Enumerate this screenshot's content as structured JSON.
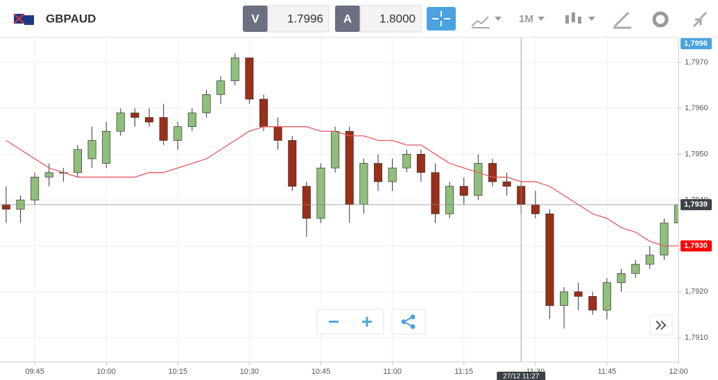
{
  "header": {
    "symbol": "GBPAUD",
    "bid_label": "V",
    "bid": "1.7996",
    "ask_label": "A",
    "ask": "1.8000",
    "timeframe": "1M"
  },
  "chart_data": {
    "type": "candlestick",
    "x": [
      "09:39",
      "09:42",
      "09:45",
      "09:48",
      "09:51",
      "09:54",
      "09:57",
      "10:00",
      "10:03",
      "10:06",
      "10:09",
      "10:12",
      "10:15",
      "10:18",
      "10:21",
      "10:24",
      "10:27",
      "10:30",
      "10:33",
      "10:36",
      "10:39",
      "10:42",
      "10:45",
      "10:48",
      "10:51",
      "10:54",
      "10:57",
      "11:00",
      "11:03",
      "11:06",
      "11:09",
      "11:12",
      "11:15",
      "11:18",
      "11:21",
      "11:24",
      "11:27",
      "11:30",
      "11:33",
      "11:36",
      "11:39",
      "11:42",
      "11:45",
      "11:48",
      "11:51",
      "11:54",
      "11:57",
      "12:00"
    ],
    "open": [
      1.7939,
      1.7938,
      1.794,
      1.7945,
      1.7946,
      1.7946,
      1.7949,
      1.7948,
      1.7955,
      1.7959,
      1.7958,
      1.7958,
      1.7953,
      1.7956,
      1.7959,
      1.7963,
      1.7966,
      1.7971,
      1.7962,
      1.7956,
      1.7953,
      1.7943,
      1.7936,
      1.7947,
      1.7955,
      1.7939,
      1.7948,
      1.7944,
      1.7947,
      1.795,
      1.7946,
      1.7937,
      1.7943,
      1.7941,
      1.7948,
      1.7944,
      1.7943,
      1.7939,
      1.7937,
      1.7917,
      1.792,
      1.7919,
      1.7916,
      1.7922,
      1.7924,
      1.7926,
      1.7928,
      1.7935
    ],
    "high": [
      1.7943,
      1.7941,
      1.7946,
      1.7948,
      1.7947,
      1.7952,
      1.7956,
      1.7957,
      1.796,
      1.796,
      1.796,
      1.7961,
      1.7957,
      1.796,
      1.7964,
      1.7967,
      1.7972,
      1.7971,
      1.7963,
      1.7958,
      1.7954,
      1.7944,
      1.7948,
      1.7956,
      1.7956,
      1.7949,
      1.795,
      1.7949,
      1.7951,
      1.7951,
      1.7948,
      1.7944,
      1.7945,
      1.795,
      1.7949,
      1.7946,
      1.7944,
      1.7942,
      1.7938,
      1.7921,
      1.7922,
      1.792,
      1.7923,
      1.7925,
      1.7927,
      1.793,
      1.7936,
      1.7943
    ],
    "low": [
      1.7935,
      1.7935,
      1.7939,
      1.7943,
      1.7944,
      1.7945,
      1.7947,
      1.7947,
      1.7954,
      1.7956,
      1.7956,
      1.7952,
      1.7951,
      1.7955,
      1.7958,
      1.7961,
      1.7965,
      1.7961,
      1.7955,
      1.7951,
      1.7942,
      1.7932,
      1.7935,
      1.7946,
      1.7935,
      1.7937,
      1.7942,
      1.7942,
      1.7946,
      1.7944,
      1.7935,
      1.7936,
      1.7939,
      1.794,
      1.7943,
      1.7941,
      1.7937,
      1.7936,
      1.7914,
      1.7912,
      1.7916,
      1.7915,
      1.7914,
      1.792,
      1.7923,
      1.7925,
      1.7927,
      1.7934
    ],
    "close": [
      1.7938,
      1.794,
      1.7945,
      1.7946,
      1.7946,
      1.7951,
      1.7953,
      1.7955,
      1.7959,
      1.7958,
      1.7957,
      1.7953,
      1.7956,
      1.7959,
      1.7963,
      1.7966,
      1.7971,
      1.7962,
      1.7956,
      1.7953,
      1.7943,
      1.7936,
      1.7947,
      1.7955,
      1.7939,
      1.7948,
      1.7944,
      1.7947,
      1.795,
      1.7946,
      1.7937,
      1.7943,
      1.7941,
      1.7948,
      1.7944,
      1.7943,
      1.7939,
      1.7937,
      1.7917,
      1.792,
      1.7919,
      1.7916,
      1.7922,
      1.7924,
      1.7926,
      1.7928,
      1.7935,
      1.7939
    ],
    "up_color": "#8fbf7a",
    "down_color": "#9b2f18",
    "series": [
      {
        "color": "#e8555a",
        "values": [
          1.7953,
          1.7951,
          1.7949,
          1.7947,
          1.7946,
          1.7945,
          1.7945,
          1.7945,
          1.7945,
          1.7945,
          1.7946,
          1.7946,
          1.7947,
          1.7948,
          1.7949,
          1.7951,
          1.7953,
          1.7955,
          1.7956,
          1.7956,
          1.7956,
          1.7956,
          1.7955,
          1.7955,
          1.7954,
          1.7954,
          1.7953,
          1.7953,
          1.7952,
          1.7952,
          1.795,
          1.7948,
          1.7947,
          1.7946,
          1.7945,
          1.7945,
          1.7944,
          1.7944,
          1.7943,
          1.7941,
          1.7939,
          1.7937,
          1.7936,
          1.7934,
          1.7933,
          1.7931,
          1.793,
          1.793
        ]
      }
    ],
    "xlim": [
      "09:38",
      "12:00"
    ],
    "xticks": [
      "09:45",
      "10:00",
      "10:15",
      "10:30",
      "10:45",
      "11:00",
      "11:15",
      "11:30",
      "11:45",
      "12:00"
    ],
    "ylim": [
      1.79047,
      1.79753
    ],
    "yticks": [
      {
        "value": 1.791,
        "label": "1,7910"
      },
      {
        "value": 1.792,
        "label": "1,7920"
      },
      {
        "value": 1.793,
        "label": "1,7930"
      },
      {
        "value": 1.794,
        "label": "1,7940"
      },
      {
        "value": 1.795,
        "label": "1,7950"
      },
      {
        "value": 1.796,
        "label": "1,7960"
      },
      {
        "value": 1.797,
        "label": "1,7970"
      }
    ],
    "grid": true,
    "price_badges": [
      {
        "value": 1.7996,
        "label": "1,7996",
        "color": "#4aa3df"
      },
      {
        "value": 1.7939,
        "label": "1,7939",
        "color": "#3c4148"
      },
      {
        "value": 1.793,
        "label": "1,7930",
        "color": "#ff0000"
      }
    ],
    "crosshair": {
      "label": "27/12 11:27",
      "price": 1.7939
    }
  }
}
